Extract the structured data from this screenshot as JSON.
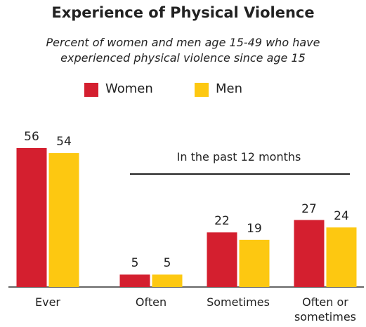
{
  "chart_data": {
    "type": "bar",
    "title": "Experience of Physical Violence",
    "subtitle": "Percent of women and men age 15-49 who have experienced physical violence since age 15",
    "annotation": "In the past 12 months",
    "categories": [
      "Ever",
      "Often",
      "Sometimes",
      "Often or sometimes"
    ],
    "series": [
      {
        "name": "Women",
        "color": "#d41f2f",
        "values": [
          56,
          5,
          22,
          27
        ]
      },
      {
        "name": "Men",
        "color": "#fdc811",
        "values": [
          54,
          5,
          19,
          24
        ]
      }
    ]
  }
}
